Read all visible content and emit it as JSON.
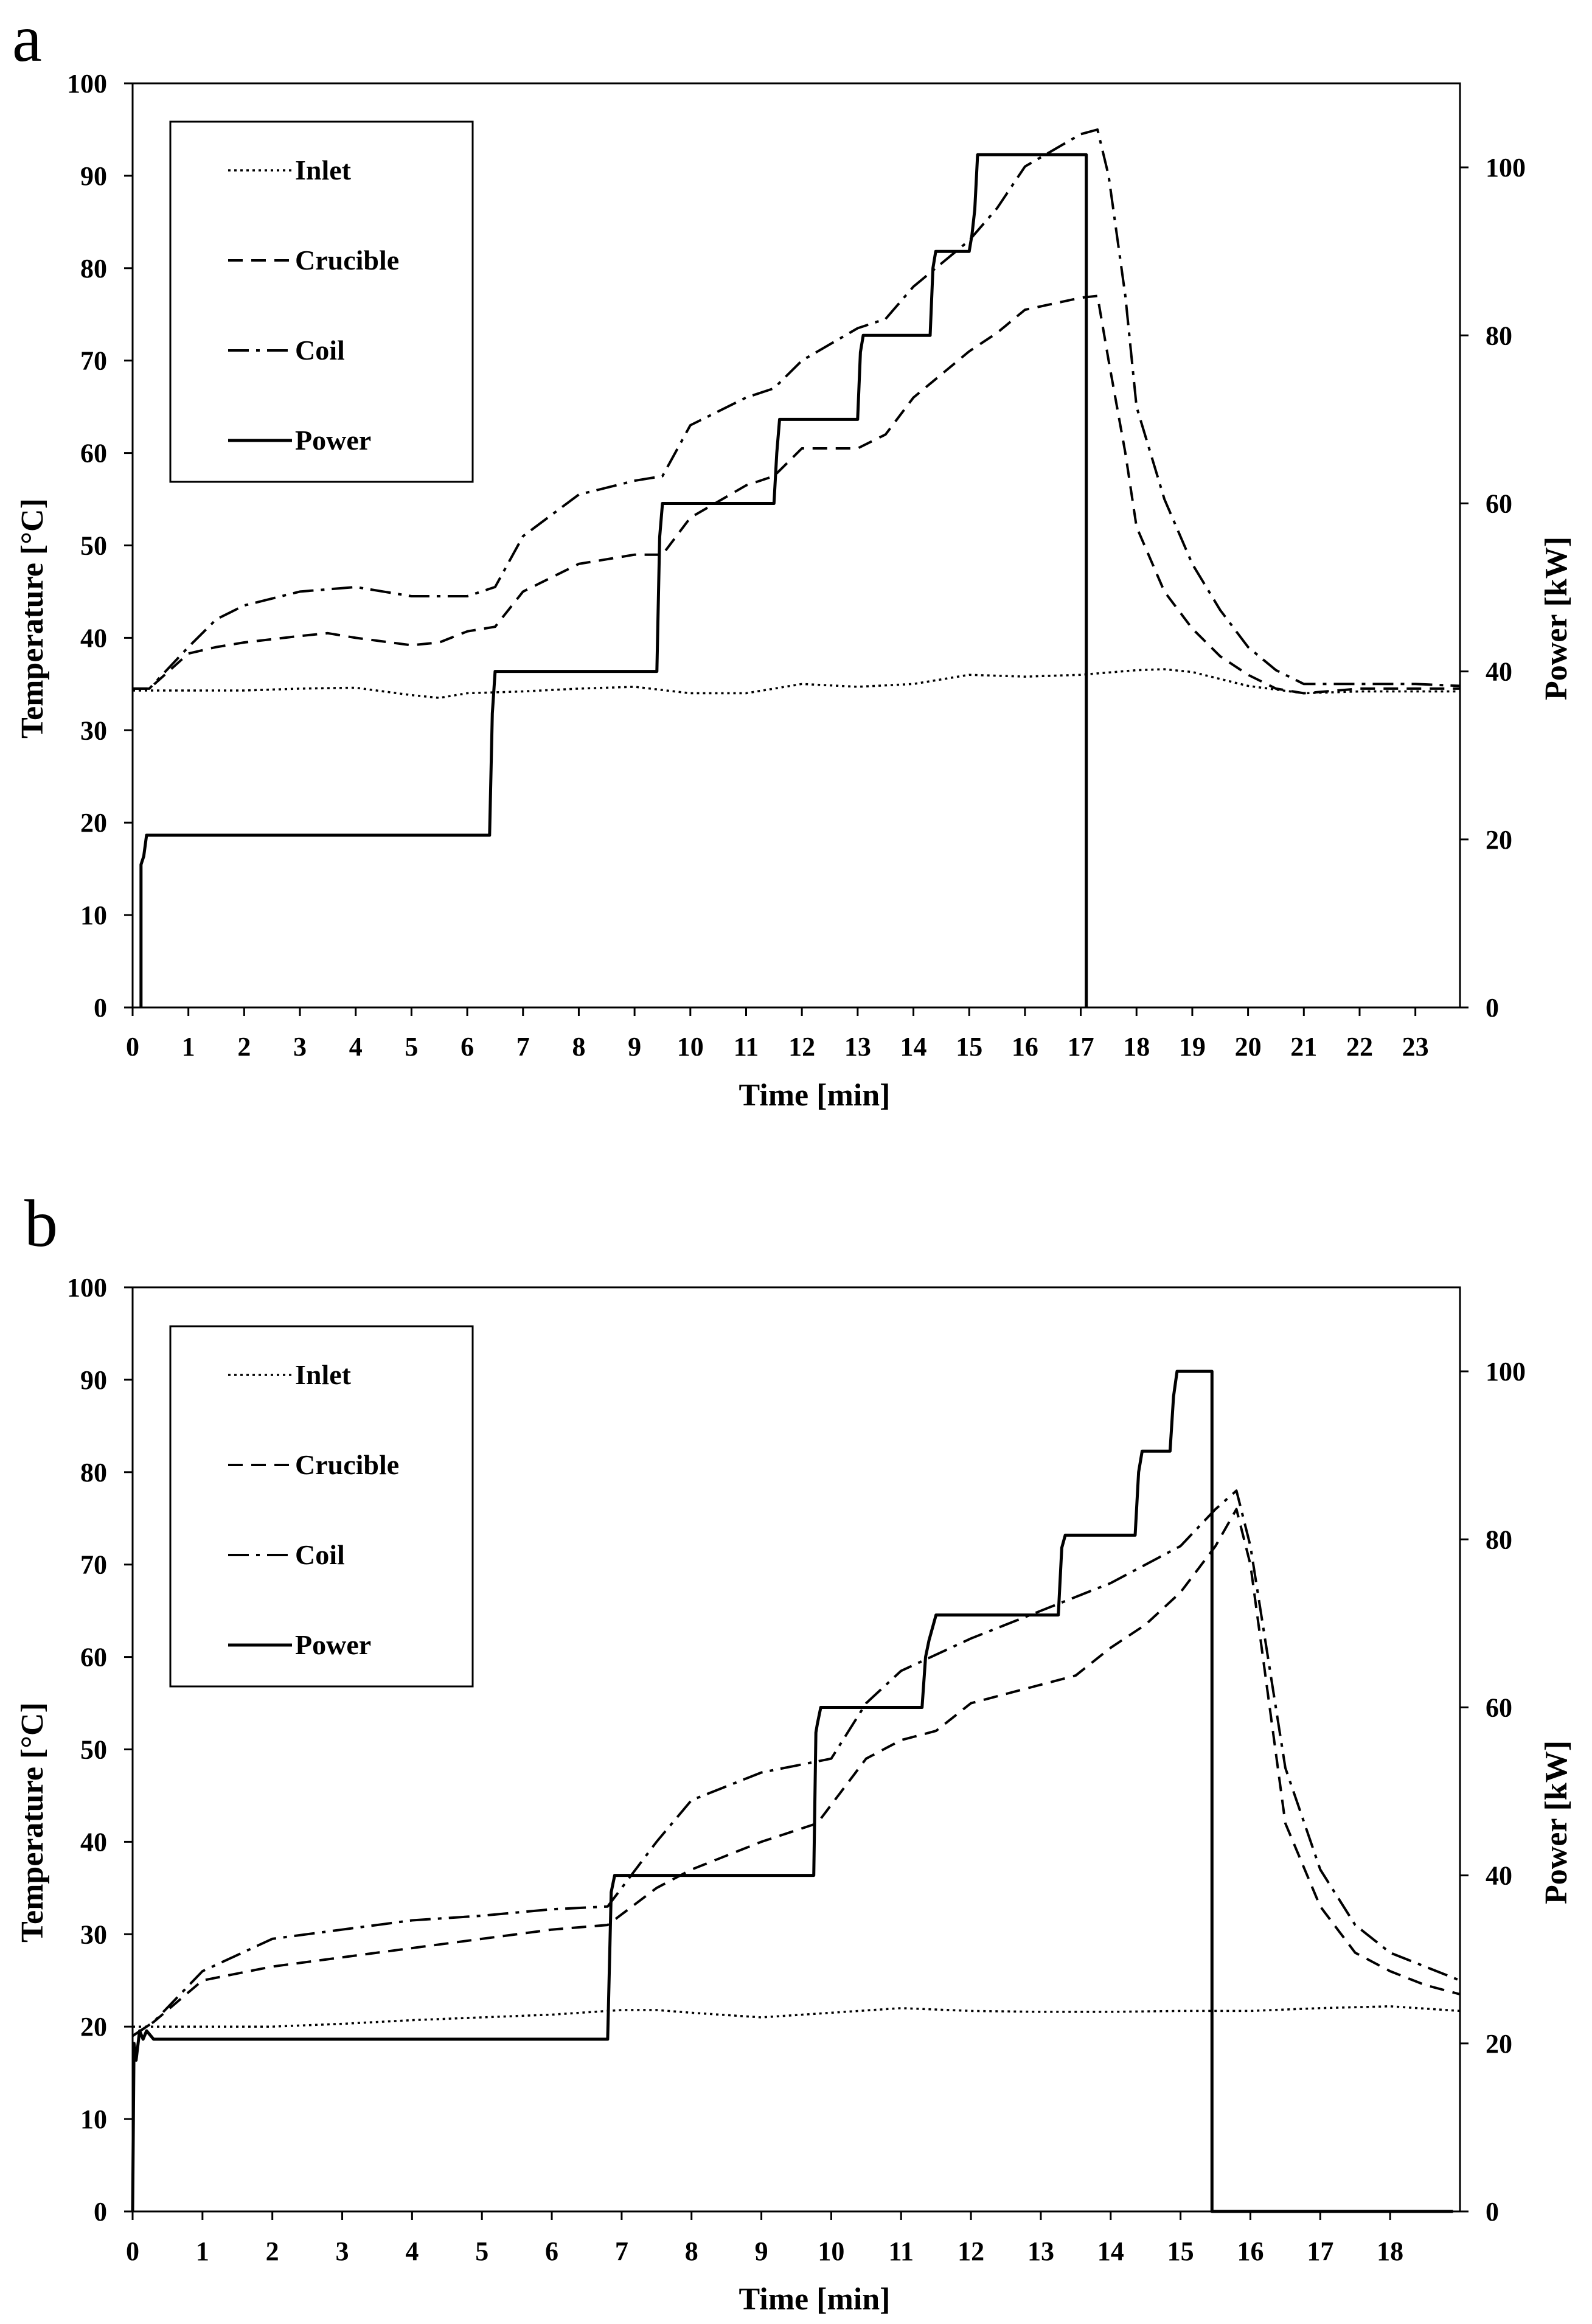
{
  "figure_panels": [
    "a",
    "b"
  ],
  "chart_data": [
    {
      "panel": "a",
      "type": "line",
      "xlabel": "Time  [min]",
      "ylabel_left": "Temperature  [°C]",
      "ylabel_right": "Power [kW]",
      "xlim": [
        0,
        23.8
      ],
      "ylim_left": [
        0,
        100
      ],
      "ylim_right": [
        0,
        110
      ],
      "x_ticks": [
        0,
        1,
        2,
        3,
        4,
        5,
        6,
        7,
        8,
        9,
        10,
        11,
        12,
        13,
        14,
        15,
        16,
        17,
        18,
        19,
        20,
        21,
        22,
        23
      ],
      "y_left_ticks": [
        0,
        10,
        20,
        30,
        40,
        50,
        60,
        70,
        80,
        90,
        100
      ],
      "y_right_ticks": [
        0,
        20,
        40,
        60,
        80,
        100
      ],
      "legend": [
        "Inlet",
        "Crucible",
        "Coil",
        "Power"
      ],
      "series": [
        {
          "name": "Inlet",
          "axis": "left",
          "style": "dotted",
          "x": [
            0,
            1,
            2,
            3,
            4,
            5,
            5.5,
            6,
            7,
            8,
            9,
            10,
            11,
            12,
            13,
            14,
            15,
            16,
            17,
            18,
            18.5,
            19,
            20,
            21,
            22,
            23,
            23.8
          ],
          "y": [
            34.3,
            34.3,
            34.3,
            34.5,
            34.6,
            33.8,
            33.5,
            34,
            34.2,
            34.5,
            34.7,
            34,
            34,
            35,
            34.7,
            35,
            36,
            35.8,
            36,
            36.5,
            36.6,
            36.3,
            34.8,
            34,
            34.2,
            34.2,
            34.2
          ]
        },
        {
          "name": "Crucible",
          "axis": "left",
          "style": "dashed",
          "x": [
            0,
            0.3,
            1,
            1.5,
            2,
            3,
            3.5,
            4,
            5,
            5.5,
            6,
            6.5,
            7,
            8,
            9,
            9.5,
            10,
            11,
            11.5,
            12,
            13,
            13.5,
            14,
            15,
            15.5,
            16,
            17,
            17.3,
            17.5,
            17.8,
            18,
            18.5,
            19,
            19.5,
            20,
            20.5,
            21,
            22,
            23,
            23.8
          ],
          "y": [
            34.5,
            34.5,
            38.3,
            39,
            39.5,
            40.2,
            40.5,
            40,
            39.2,
            39.5,
            40.7,
            41.2,
            45,
            48,
            49,
            49,
            53,
            56.5,
            57.5,
            60.5,
            60.5,
            62,
            66,
            71,
            73,
            75.5,
            76.8,
            77,
            70,
            60,
            52,
            45,
            41,
            38,
            36,
            34.5,
            34,
            34.5,
            34.5,
            34.5
          ]
        },
        {
          "name": "Coil",
          "axis": "left",
          "style": "dashdot",
          "x": [
            0,
            0.3,
            1,
            1.5,
            2,
            3,
            4,
            5,
            6,
            6.5,
            7,
            8,
            9,
            9.5,
            10,
            11,
            11.5,
            12,
            13,
            13.5,
            14,
            15,
            15.5,
            16,
            17,
            17.3,
            17.5,
            17.8,
            18,
            18.5,
            19,
            19.5,
            20,
            20.5,
            21,
            22,
            23,
            23.8
          ],
          "y": [
            34.5,
            34.5,
            39,
            42,
            43.5,
            45,
            45.5,
            44.5,
            44.5,
            45.5,
            51,
            55.5,
            57,
            57.5,
            63,
            66,
            67,
            70,
            73.5,
            74.5,
            78,
            83,
            86.5,
            91,
            94.5,
            95,
            90,
            77,
            65,
            55,
            48,
            43,
            39,
            36.5,
            35,
            35,
            35,
            34.8
          ]
        },
        {
          "name": "Power",
          "axis": "right",
          "style": "solid",
          "x": [
            0.15,
            0.15,
            0.2,
            0.25,
            0.3,
            6.4,
            6.45,
            6.5,
            9.4,
            9.45,
            9.5,
            11.5,
            11.55,
            11.6,
            13.0,
            13.05,
            13.1,
            14.3,
            14.35,
            14.4,
            14.5,
            15.0,
            15.05,
            15.1,
            15.15,
            17.1,
            17.1
          ],
          "y": [
            0,
            17,
            18,
            20.5,
            20.5,
            20.5,
            35,
            40,
            40,
            56,
            60,
            60,
            66,
            70,
            70,
            78,
            80,
            80,
            88,
            90,
            90,
            90,
            92,
            95,
            101.5,
            101.5,
            0
          ]
        }
      ]
    },
    {
      "panel": "b",
      "type": "line",
      "xlabel": "Time  [min]",
      "ylabel_left": "Temperature  [°C]",
      "ylabel_right": "Power [kW]",
      "xlim": [
        0,
        19
      ],
      "ylim_left": [
        0,
        100
      ],
      "ylim_right": [
        0,
        110
      ],
      "x_ticks": [
        0,
        1,
        2,
        3,
        4,
        5,
        6,
        7,
        8,
        9,
        10,
        11,
        12,
        13,
        14,
        15,
        16,
        17,
        18
      ],
      "y_left_ticks": [
        0,
        10,
        20,
        30,
        40,
        50,
        60,
        70,
        80,
        90,
        100
      ],
      "y_right_ticks": [
        0,
        20,
        40,
        60,
        80,
        100
      ],
      "legend": [
        "Inlet",
        "Crucible",
        "Coil",
        "Power"
      ],
      "series": [
        {
          "name": "Inlet",
          "axis": "left",
          "style": "dotted",
          "x": [
            0,
            1,
            2,
            3,
            4,
            5,
            6,
            7,
            7.5,
            8,
            9,
            10,
            11,
            12,
            13,
            14,
            15,
            16,
            17,
            18,
            19
          ],
          "y": [
            20,
            20,
            20,
            20.3,
            20.7,
            21,
            21.3,
            21.8,
            21.8,
            21.5,
            21,
            21.5,
            22,
            21.7,
            21.6,
            21.6,
            21.7,
            21.7,
            22,
            22.2,
            21.7
          ]
        },
        {
          "name": "Crucible",
          "axis": "left",
          "style": "dashed",
          "x": [
            0,
            0.3,
            1,
            2,
            3,
            4,
            5,
            6,
            6.8,
            7.5,
            8,
            9,
            9.8,
            10.5,
            11,
            11.5,
            12,
            13,
            13.5,
            14,
            14.5,
            15,
            15.5,
            15.8,
            16,
            16.5,
            17,
            17.5,
            18,
            18.5,
            19
          ],
          "y": [
            19,
            20.5,
            25,
            26.5,
            27.5,
            28.5,
            29.5,
            30.5,
            31,
            35,
            37,
            40,
            42,
            49,
            51,
            52,
            55,
            57,
            58,
            61,
            63.5,
            67,
            72,
            76,
            70,
            42,
            33,
            28,
            26,
            24.5,
            23.5
          ]
        },
        {
          "name": "Coil",
          "axis": "left",
          "style": "dashdot",
          "x": [
            0,
            0.3,
            1,
            2,
            3,
            4,
            5,
            6,
            6.8,
            7.5,
            8,
            9,
            10,
            10.5,
            11,
            12,
            13,
            14,
            15,
            15.5,
            15.8,
            16,
            16.5,
            17,
            17.5,
            18,
            18.5,
            19
          ],
          "y": [
            19,
            20.5,
            26,
            29.5,
            30.5,
            31.5,
            32,
            32.7,
            33,
            40,
            44.5,
            47.5,
            49,
            55,
            58.5,
            62,
            65,
            68,
            72,
            76,
            78,
            72,
            48,
            37,
            31,
            28,
            26.5,
            25
          ]
        },
        {
          "name": "Power",
          "axis": "right",
          "style": "solid",
          "x": [
            0,
            0.02,
            0.05,
            0.1,
            0.15,
            0.2,
            0.3,
            6.8,
            6.85,
            6.9,
            7.0,
            9.75,
            9.78,
            9.8,
            9.85,
            9.9,
            11.3,
            11.35,
            11.4,
            11.5,
            13.25,
            13.3,
            13.35,
            14.35,
            14.4,
            14.45,
            14.85,
            14.9,
            14.95,
            15.45,
            15.45,
            18.9
          ],
          "y": [
            0,
            20,
            18,
            21.5,
            20.5,
            21.5,
            20.5,
            20.5,
            38,
            40,
            40,
            40,
            57,
            58,
            60,
            60,
            60,
            66,
            68,
            71,
            71,
            79,
            80.5,
            80.5,
            88,
            90.5,
            90.5,
            97,
            100,
            100,
            0,
            0
          ]
        }
      ]
    }
  ]
}
